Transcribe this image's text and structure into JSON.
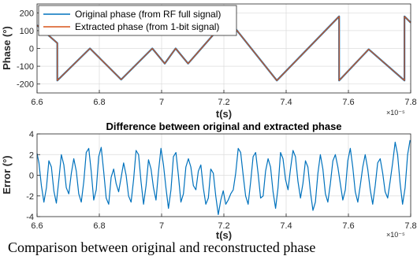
{
  "chart_data": [
    {
      "type": "line",
      "title": "",
      "xlabel": "t(s)",
      "ylabel": "Phase (°)",
      "xlim": [
        6.6,
        7.8
      ],
      "ylim": [
        -250,
        250
      ],
      "x_exponent_label": "×10⁻⁵",
      "xticks": [
        6.6,
        6.8,
        7.0,
        7.2,
        7.4,
        7.6,
        7.8
      ],
      "xtick_labels": [
        "6.6",
        "6.8",
        "7",
        "7.2",
        "7.4",
        "7.6",
        "7.8"
      ],
      "yticks": [
        200,
        100,
        0,
        -100,
        -200
      ],
      "ytick_labels": [
        "200",
        "100",
        "0",
        "-100",
        "-200"
      ],
      "grid": true,
      "legend_position": "top-left",
      "series": [
        {
          "name": "Original phase (from RF full signal)",
          "color": "#0072BD",
          "x": [
            6.6,
            6.665,
            6.665,
            6.77,
            6.87,
            6.97,
            7.01,
            7.045,
            7.085,
            7.215,
            7.215,
            7.37,
            7.57,
            7.57,
            7.665,
            7.78,
            7.78,
            7.8
          ],
          "y": [
            130,
            30,
            -180,
            0,
            -175,
            0,
            -85,
            0,
            -85,
            175,
            160,
            -180,
            180,
            -180,
            -5,
            -180,
            180,
            145
          ]
        },
        {
          "name": "Extracted phase (from 1-bit signal)",
          "color": "#D95319",
          "x": [
            6.6,
            6.665,
            6.665,
            6.77,
            6.87,
            6.97,
            7.01,
            7.045,
            7.085,
            7.215,
            7.215,
            7.37,
            7.57,
            7.57,
            7.665,
            7.78,
            7.78,
            7.8
          ],
          "y": [
            130,
            30,
            -180,
            0,
            -175,
            0,
            -85,
            0,
            -85,
            175,
            160,
            -180,
            180,
            -180,
            -5,
            -180,
            180,
            145
          ]
        }
      ]
    },
    {
      "type": "line",
      "title": "Difference between original and extracted phase",
      "xlabel": "t(s)",
      "ylabel": "Error (°)",
      "xlim": [
        6.6,
        7.8
      ],
      "ylim": [
        -4,
        4
      ],
      "x_exponent_label": "×10⁻⁵",
      "xticks": [
        6.6,
        6.8,
        7.0,
        7.2,
        7.4,
        7.6,
        7.8
      ],
      "xtick_labels": [
        "6.6",
        "6.8",
        "7",
        "7.2",
        "7.4",
        "7.6",
        "7.8"
      ],
      "yticks": [
        4,
        2,
        0,
        -2,
        -4
      ],
      "ytick_labels": [
        "4",
        "2",
        "0",
        "-2",
        "-4"
      ],
      "grid": true,
      "series": [
        {
          "color": "#0072BD",
          "x": [
            6.6,
            6.606,
            6.614,
            6.622,
            6.63,
            6.638,
            6.646,
            6.654,
            6.662,
            6.67,
            6.678,
            6.686,
            6.694,
            6.702,
            6.71,
            6.718,
            6.726,
            6.734,
            6.742,
            6.75,
            6.758,
            6.766,
            6.774,
            6.782,
            6.79,
            6.798,
            6.806,
            6.814,
            6.822,
            6.83,
            6.838,
            6.846,
            6.854,
            6.862,
            6.87,
            6.878,
            6.886,
            6.894,
            6.902,
            6.91,
            6.918,
            6.926,
            6.934,
            6.942,
            6.95,
            6.958,
            6.966,
            6.974,
            6.982,
            6.99,
            6.998,
            7.006,
            7.014,
            7.022,
            7.03,
            7.038,
            7.046,
            7.054,
            7.062,
            7.07,
            7.078,
            7.086,
            7.094,
            7.102,
            7.11,
            7.118,
            7.126,
            7.134,
            7.142,
            7.15,
            7.158,
            7.166,
            7.174,
            7.182,
            7.19,
            7.198,
            7.206,
            7.214,
            7.222,
            7.23,
            7.238,
            7.246,
            7.254,
            7.262,
            7.27,
            7.278,
            7.286,
            7.294,
            7.302,
            7.31,
            7.318,
            7.326,
            7.334,
            7.342,
            7.35,
            7.358,
            7.366,
            7.374,
            7.382,
            7.39,
            7.398,
            7.406,
            7.414,
            7.422,
            7.43,
            7.438,
            7.446,
            7.454,
            7.462,
            7.47,
            7.478,
            7.486,
            7.494,
            7.502,
            7.51,
            7.518,
            7.526,
            7.534,
            7.542,
            7.55,
            7.558,
            7.566,
            7.574,
            7.582,
            7.59,
            7.598,
            7.606,
            7.614,
            7.622,
            7.63,
            7.638,
            7.646,
            7.654,
            7.662,
            7.67,
            7.678,
            7.686,
            7.694,
            7.702,
            7.71,
            7.718,
            7.726,
            7.734,
            7.742,
            7.75,
            7.758,
            7.766,
            7.774,
            7.782,
            7.79,
            7.798
          ],
          "y": [
            2.1,
            1.2,
            -1.0,
            -2.6,
            -1.2,
            1.4,
            0.8,
            -1.5,
            -2.7,
            -0.4,
            2.0,
            1.0,
            -1.2,
            -1.8,
            0.2,
            1.6,
            0.4,
            -1.8,
            -2.6,
            -0.6,
            2.2,
            2.6,
            0.4,
            -2.4,
            -1.4,
            1.8,
            2.7,
            0.4,
            -2.2,
            -2.8,
            -0.2,
            0.6,
            -0.8,
            -1.6,
            -0.2,
            1.2,
            0.0,
            -2.0,
            -2.6,
            -0.4,
            2.4,
            2.0,
            -0.6,
            -2.8,
            -1.0,
            1.5,
            0.6,
            -1.2,
            -2.4,
            0.4,
            2.6,
            1.0,
            -1.2,
            -3.2,
            -1.4,
            1.8,
            2.2,
            0.0,
            -2.6,
            -1.8,
            0.8,
            1.6,
            0.8,
            -1.0,
            -1.4,
            0.4,
            1.0,
            -1.2,
            -2.8,
            -2.2,
            0.6,
            0.2,
            -2.0,
            -3.8,
            -2.4,
            -1.5,
            -2.8,
            -2.4,
            -1.8,
            -1.4,
            0.2,
            2.6,
            2.2,
            0.0,
            -2.0,
            -2.8,
            -0.6,
            1.8,
            2.2,
            0.2,
            -2.2,
            -2.0,
            0.4,
            1.6,
            0.8,
            -1.6,
            -3.2,
            -1.2,
            2.2,
            1.6,
            -0.4,
            -1.4,
            0.6,
            2.4,
            1.8,
            -0.6,
            -2.2,
            -0.8,
            1.4,
            0.8,
            -1.6,
            -3.4,
            -2.6,
            0.2,
            2.0,
            0.6,
            -1.8,
            -2.6,
            -0.8,
            1.4,
            2.0,
            0.8,
            -0.8,
            -2.4,
            -1.4,
            1.4,
            2.6,
            0.8,
            -1.6,
            -2.6,
            -1.0,
            0.8,
            2.0,
            0.6,
            -1.4,
            -2.8,
            -1.0,
            1.2,
            1.6,
            0.2,
            -1.6,
            -2.2,
            -0.6,
            1.2,
            3.2,
            2.0,
            -0.8,
            -2.8,
            -1.2,
            2.0,
            3.4
          ]
        }
      ]
    }
  ],
  "caption": "Comparison between original and reconstructed phase"
}
